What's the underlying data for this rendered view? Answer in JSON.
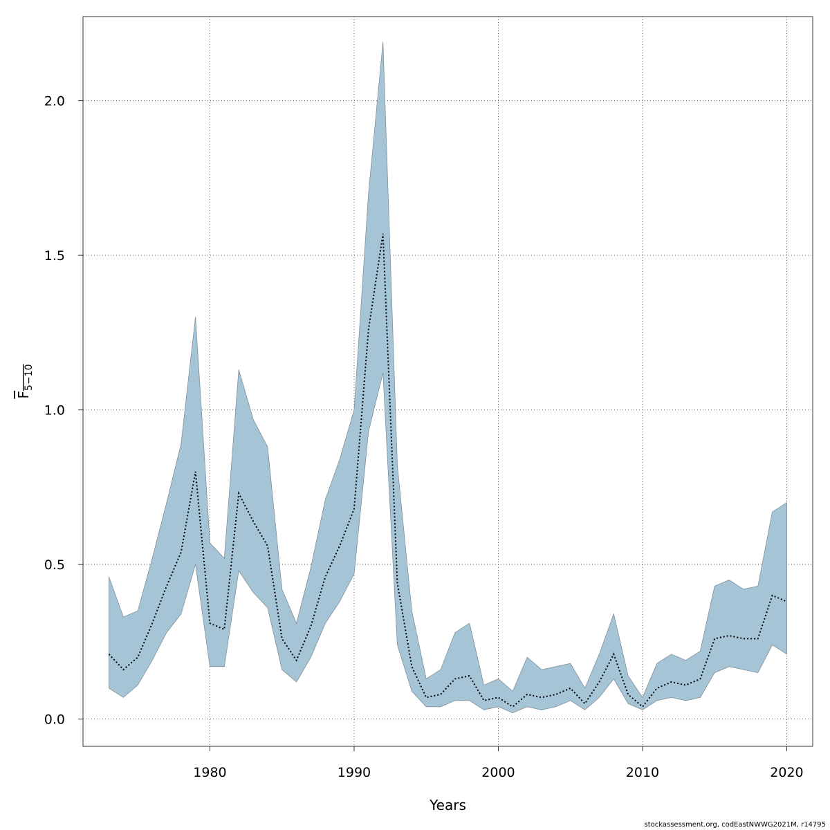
{
  "chart_data": {
    "type": "area",
    "title": "",
    "xlabel": "Years",
    "ylabel": "F5-10",
    "ylabel_main": "F",
    "ylabel_sub": "5−10",
    "xlim": [
      1971.2,
      2021.8
    ],
    "ylim": [
      -0.088,
      2.272
    ],
    "xticks": [
      1980,
      1990,
      2000,
      2010,
      2020
    ],
    "yticks": [
      0.0,
      0.5,
      1.0,
      1.5,
      2.0
    ],
    "ytick_labels": [
      "0.0",
      "0.5",
      "1.0",
      "1.5",
      "2.0"
    ],
    "grid": true,
    "colors": {
      "band": "#a5c5d6",
      "band_edge": "#7f8f99",
      "line": "#000000",
      "grid": "#555555"
    },
    "x": [
      1973,
      1974,
      1975,
      1976,
      1977,
      1978,
      1979,
      1980,
      1981,
      1982,
      1983,
      1984,
      1985,
      1986,
      1987,
      1988,
      1989,
      1990,
      1991,
      1992,
      1993,
      1994,
      1995,
      1996,
      1997,
      1998,
      1999,
      2000,
      2001,
      2002,
      2003,
      2004,
      2005,
      2006,
      2007,
      2008,
      2009,
      2010,
      2011,
      2012,
      2013,
      2014,
      2015,
      2016,
      2017,
      2018,
      2019,
      2020
    ],
    "series": [
      {
        "role": "estimate",
        "values": [
          0.21,
          0.16,
          0.2,
          0.31,
          0.43,
          0.54,
          0.8,
          0.31,
          0.29,
          0.73,
          0.64,
          0.56,
          0.26,
          0.19,
          0.3,
          0.46,
          0.56,
          0.68,
          1.26,
          1.57,
          0.44,
          0.17,
          0.07,
          0.08,
          0.13,
          0.14,
          0.06,
          0.07,
          0.04,
          0.08,
          0.07,
          0.08,
          0.1,
          0.05,
          0.12,
          0.21,
          0.08,
          0.04,
          0.1,
          0.12,
          0.11,
          0.13,
          0.26,
          0.27,
          0.26,
          0.26,
          0.4,
          0.38
        ]
      },
      {
        "role": "upper",
        "values": [
          0.46,
          0.33,
          0.35,
          0.52,
          0.7,
          0.89,
          1.3,
          0.57,
          0.52,
          1.13,
          0.97,
          0.88,
          0.42,
          0.31,
          0.49,
          0.71,
          0.84,
          1.0,
          1.7,
          2.19,
          0.82,
          0.35,
          0.13,
          0.16,
          0.28,
          0.31,
          0.11,
          0.13,
          0.09,
          0.2,
          0.16,
          0.17,
          0.18,
          0.1,
          0.21,
          0.34,
          0.14,
          0.07,
          0.18,
          0.21,
          0.19,
          0.22,
          0.43,
          0.45,
          0.42,
          0.43,
          0.67,
          0.7
        ]
      },
      {
        "role": "lower",
        "values": [
          0.1,
          0.07,
          0.11,
          0.19,
          0.28,
          0.34,
          0.5,
          0.17,
          0.17,
          0.48,
          0.41,
          0.36,
          0.16,
          0.12,
          0.2,
          0.31,
          0.38,
          0.47,
          0.93,
          1.12,
          0.24,
          0.09,
          0.04,
          0.04,
          0.06,
          0.06,
          0.03,
          0.04,
          0.02,
          0.04,
          0.03,
          0.04,
          0.06,
          0.03,
          0.07,
          0.13,
          0.05,
          0.03,
          0.06,
          0.07,
          0.06,
          0.07,
          0.15,
          0.17,
          0.16,
          0.15,
          0.24,
          0.21
        ]
      }
    ]
  },
  "credit": "stockassessment.org, codEastNWWG2021M, r14795"
}
